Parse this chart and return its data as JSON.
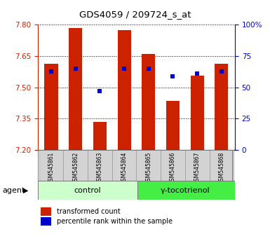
{
  "title": "GDS4059 / 209724_s_at",
  "samples": [
    "GSM545861",
    "GSM545862",
    "GSM545863",
    "GSM545864",
    "GSM545865",
    "GSM545866",
    "GSM545867",
    "GSM545868"
  ],
  "bar_values": [
    7.615,
    7.785,
    7.335,
    7.775,
    7.66,
    7.435,
    7.555,
    7.615
  ],
  "percentile_values": [
    63,
    65,
    47,
    65,
    65,
    59,
    61,
    63
  ],
  "ylim_left": [
    7.2,
    7.8
  ],
  "ylim_right": [
    0,
    100
  ],
  "yticks_left": [
    7.2,
    7.35,
    7.5,
    7.65,
    7.8
  ],
  "yticks_right": [
    0,
    25,
    50,
    75,
    100
  ],
  "bar_color": "#cc2200",
  "dot_color": "#0000cc",
  "bar_bottom": 7.2,
  "control_color": "#ccffcc",
  "gamma_color": "#44ee44",
  "agent_label": "agent",
  "legend_items": [
    {
      "color": "#cc2200",
      "label": "transformed count"
    },
    {
      "color": "#0000cc",
      "label": "percentile rank within the sample"
    }
  ],
  "tick_label_color_left": "#cc2200",
  "tick_label_color_right": "#0000cc"
}
